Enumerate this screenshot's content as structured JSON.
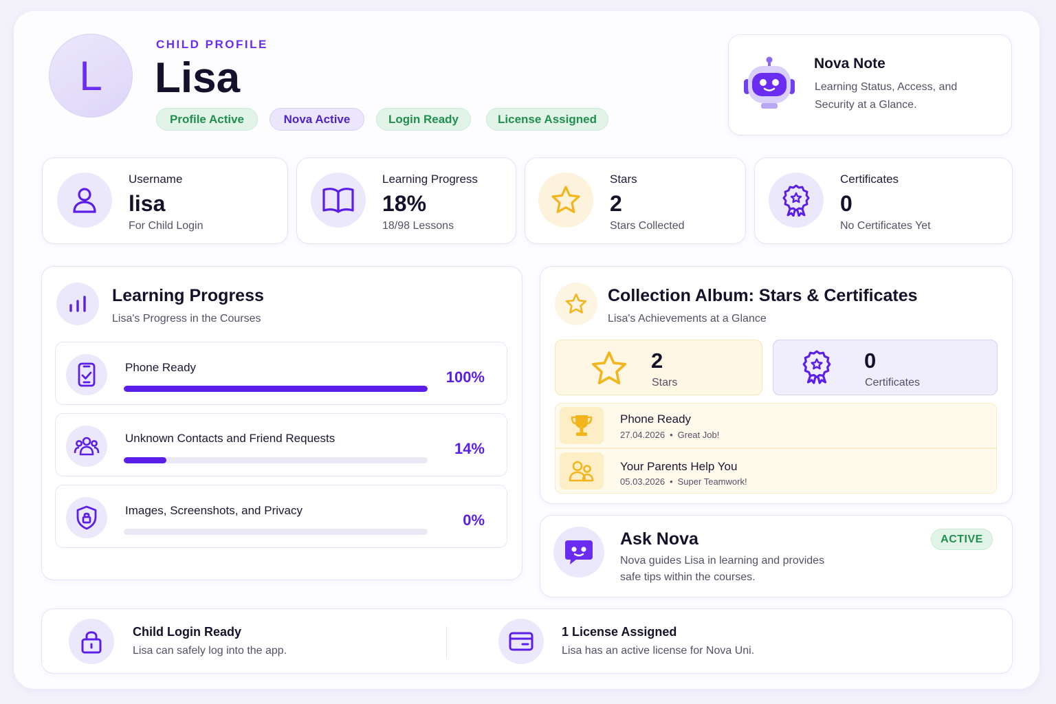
{
  "header": {
    "avatar_initial": "L",
    "eyebrow": "CHILD PROFILE",
    "name": "Lisa",
    "badges": [
      {
        "label": "Profile Active"
      },
      {
        "label": "Nova Active"
      },
      {
        "label": "Login Ready"
      },
      {
        "label": "License Assigned"
      }
    ]
  },
  "nova_note": {
    "title": "Nova Note",
    "text_line1": "Learning Status, Access, and",
    "text_line2": "Security at a Glance.",
    "icon": "robot-icon"
  },
  "stats": [
    {
      "label": "Username",
      "value": "lisa",
      "sub": "For Child Login",
      "icon": "user-icon"
    },
    {
      "label": "Learning Progress",
      "value": "18%",
      "sub": "18/98 Lessons",
      "icon": "book-icon"
    },
    {
      "label": "Stars",
      "value": "2",
      "sub": "Stars Collected",
      "icon": "star-icon"
    },
    {
      "label": "Certificates",
      "value": "0",
      "sub": "No Certificates Yet",
      "icon": "award-icon"
    }
  ],
  "learning": {
    "title": "Learning Progress",
    "subtitle": "Lisa's Progress in the Courses",
    "items": [
      {
        "label": "Phone Ready",
        "percent": 100,
        "percent_label": "100%",
        "icon": "phone-check-icon"
      },
      {
        "label": "Unknown Contacts and Friend Requests",
        "percent": 14,
        "percent_label": "14%",
        "icon": "group-icon"
      },
      {
        "label": "Images, Screenshots, and Privacy",
        "percent": 0,
        "percent_label": "0%",
        "icon": "shield-lock-icon"
      }
    ]
  },
  "album": {
    "title": "Collection Album: Stars & Certificates",
    "subtitle": "Lisa's Achievements at a Glance",
    "stars": {
      "value": "2",
      "label": "Stars"
    },
    "certificates": {
      "value": "0",
      "label": "Certificates"
    },
    "achievements": [
      {
        "title": "Phone Ready",
        "date": "27.04.2026",
        "note": "Great Job!",
        "icon": "trophy-icon"
      },
      {
        "title": "Your Parents Help You",
        "date": "05.03.2026",
        "note": "Super Teamwork!",
        "icon": "parents-icon"
      }
    ]
  },
  "ask_nova": {
    "title": "Ask Nova",
    "status": "ACTIVE",
    "text_line1": "Nova guides Lisa in learning and provides",
    "text_line2": "safe tips within the courses.",
    "icon": "chat-bot-icon"
  },
  "footer": {
    "login": {
      "title": "Child Login Ready",
      "text": "Lisa can safely log into the app.",
      "icon": "lock-icon"
    },
    "license": {
      "title": "1 License Assigned",
      "text": "Lisa has an active license for Nova Uni.",
      "icon": "card-icon"
    }
  },
  "colors": {
    "accent": "#5b1ee8",
    "green": "#1f8f4f",
    "gold": "#f2b51c"
  },
  "separator": "•"
}
